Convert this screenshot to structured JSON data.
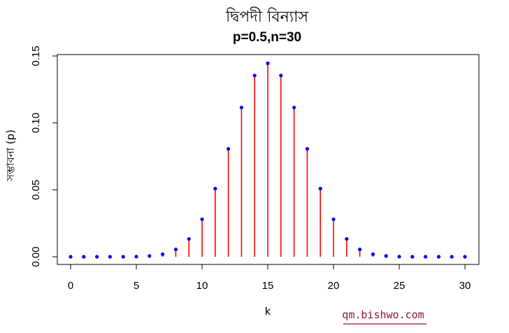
{
  "chart_data": {
    "type": "scatter",
    "style": "lollipop",
    "title": "দ্বিপদী বিন্যাস",
    "subtitle": "p=0.5,n=30",
    "xlabel": "k",
    "ylabel": "সম্ভাবনা (p)",
    "xlim": [
      0,
      30
    ],
    "ylim": [
      0,
      0.15
    ],
    "x_ticks": [
      "0",
      "5",
      "10",
      "15",
      "20",
      "25",
      "30"
    ],
    "y_ticks": [
      "0.00",
      "0.05",
      "0.10",
      "0.15"
    ],
    "x": [
      0,
      1,
      2,
      3,
      4,
      5,
      6,
      7,
      8,
      9,
      10,
      11,
      12,
      13,
      14,
      15,
      16,
      17,
      18,
      19,
      20,
      21,
      22,
      23,
      24,
      25,
      26,
      27,
      28,
      29,
      30
    ],
    "values": [
      0.0,
      0.0,
      0.0,
      0.0,
      0.0,
      0.0001,
      0.0006,
      0.0019,
      0.0055,
      0.0133,
      0.028,
      0.0509,
      0.0806,
      0.1115,
      0.1354,
      0.1445,
      0.1354,
      0.1115,
      0.0806,
      0.0509,
      0.028,
      0.0133,
      0.0055,
      0.0019,
      0.0006,
      0.0001,
      0.0,
      0.0,
      0.0,
      0.0,
      0.0
    ],
    "stem_color": "#ff0000",
    "point_color": "#0000ff",
    "grid": false,
    "legend": "none"
  },
  "watermark": "qm.bishwo.com",
  "colors": {
    "watermark": "#8a1a2a",
    "watermark_underline": "#8a1a2a"
  }
}
